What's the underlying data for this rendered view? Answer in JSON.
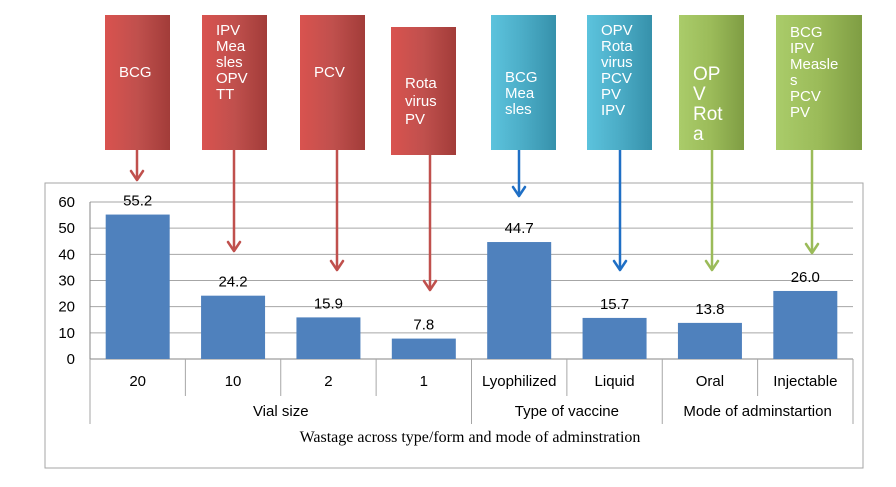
{
  "chart_data": {
    "type": "bar",
    "categories": [
      "20",
      "10",
      "2",
      "1",
      "Lyophilized",
      "Liquid",
      "Oral",
      "Injectable"
    ],
    "values": [
      55.2,
      24.2,
      15.9,
      7.8,
      44.7,
      15.7,
      13.8,
      26.0
    ],
    "value_labels": [
      "55.2",
      "24.2",
      "15.9",
      "7.8",
      "44.7",
      "15.7",
      "13.8",
      "26.0"
    ],
    "groups": [
      {
        "label": "Vial size",
        "categories": [
          "20",
          "10",
          "2",
          "1"
        ]
      },
      {
        "label": "Type of vaccine",
        "categories": [
          "Lyophilized",
          "Liquid"
        ]
      },
      {
        "label": "Mode of adminstartion",
        "categories": [
          "Oral",
          "Injectable"
        ]
      }
    ],
    "yticks": [
      "0",
      "10",
      "20",
      "30",
      "40",
      "50",
      "60"
    ],
    "ylim": [
      0,
      60
    ],
    "grid": true,
    "bar_color": "#4f81bd",
    "caption": "Wastage across type/form and mode of adminstration",
    "callouts": [
      {
        "lines": [
          "BCG"
        ],
        "color": "#c0504d"
      },
      {
        "lines": [
          "IPV",
          "Mea",
          "sles",
          "OPV",
          "TT"
        ],
        "color": "#c0504d"
      },
      {
        "lines": [
          "PCV"
        ],
        "color": "#c0504d"
      },
      {
        "lines": [
          "Rota",
          "virus",
          "PV"
        ],
        "color": "#c0504d"
      },
      {
        "lines": [
          "BCG",
          "Mea",
          "sles"
        ],
        "color": "#4bacc6"
      },
      {
        "lines": [
          "OPV",
          "Rota",
          "virus",
          "PCV",
          "PV",
          "IPV"
        ],
        "color": "#4bacc6"
      },
      {
        "lines": [
          "OP",
          "V",
          "Rot",
          "a"
        ],
        "color": "#9bbb59"
      },
      {
        "lines": [
          "BCG",
          "IPV",
          "Measle",
          "s",
          "PCV",
          "PV"
        ],
        "color": "#9bbb59"
      }
    ],
    "arrow_colors": {
      "red": "#c0504d",
      "blue": "#1f6fc5",
      "green": "#9bbb59"
    }
  }
}
